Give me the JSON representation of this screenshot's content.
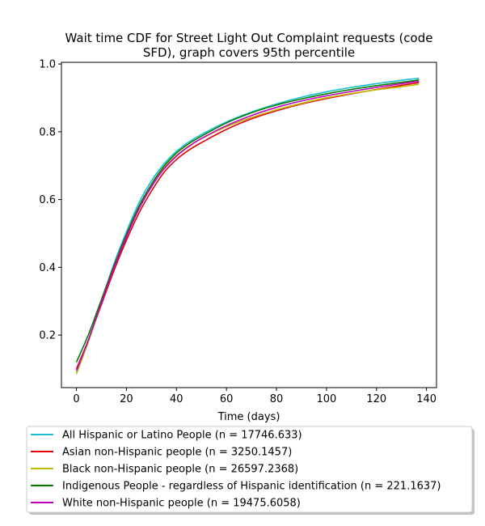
{
  "chart_data": {
    "type": "line",
    "title_lines": [
      "Wait time CDF for Street Light Out Complaint  requests (code",
      "SFD), graph covers 95th percentile"
    ],
    "xlabel": "Time (days)",
    "ylabel": "",
    "xlim": [
      -6,
      144
    ],
    "ylim": [
      0.045,
      1.005
    ],
    "x_ticks": [
      0,
      20,
      40,
      60,
      80,
      100,
      120,
      140
    ],
    "y_ticks": [
      0.2,
      0.4,
      0.6,
      0.8,
      1.0
    ],
    "x_tick_labels": [
      "0",
      "20",
      "40",
      "60",
      "80",
      "100",
      "120",
      "140"
    ],
    "y_tick_labels": [
      "0.2",
      "0.4",
      "0.6",
      "0.8",
      "1.0"
    ],
    "grid": false,
    "legend_position": "below plot",
    "x": [
      0,
      5,
      10,
      15,
      20,
      25,
      30,
      35,
      40,
      45,
      50,
      60,
      70,
      80,
      90,
      100,
      110,
      120,
      130,
      137
    ],
    "series": [
      {
        "name": "All Hispanic or Latino People (n = 17746.633)",
        "color": "#17becf",
        "values": [
          0.09,
          0.19,
          0.3,
          0.41,
          0.505,
          0.59,
          0.655,
          0.705,
          0.742,
          0.77,
          0.792,
          0.829,
          0.858,
          0.882,
          0.902,
          0.918,
          0.931,
          0.942,
          0.952,
          0.958
        ]
      },
      {
        "name": "Asian non-Hispanic people (n = 3250.1457)",
        "color": "#e8000b",
        "values": [
          0.1,
          0.19,
          0.29,
          0.39,
          0.48,
          0.56,
          0.625,
          0.68,
          0.718,
          0.746,
          0.768,
          0.807,
          0.838,
          0.862,
          0.882,
          0.898,
          0.912,
          0.925,
          0.937,
          0.945
        ]
      },
      {
        "name": "Black non-Hispanic people (n = 26597.2368)",
        "color": "#bcbd00",
        "values": [
          0.085,
          0.185,
          0.295,
          0.4,
          0.492,
          0.575,
          0.642,
          0.693,
          0.73,
          0.758,
          0.78,
          0.815,
          0.842,
          0.865,
          0.884,
          0.9,
          0.913,
          0.924,
          0.933,
          0.94
        ]
      },
      {
        "name": "Indigenous People - regardless of Hispanic identification (n = 221.1637)",
        "color": "#008000",
        "values": [
          0.12,
          0.205,
          0.305,
          0.405,
          0.497,
          0.58,
          0.645,
          0.698,
          0.737,
          0.765,
          0.787,
          0.826,
          0.856,
          0.879,
          0.897,
          0.912,
          0.925,
          0.936,
          0.946,
          0.953
        ]
      },
      {
        "name": "White non-Hispanic people (n = 19475.6058)",
        "color": "#c000c0",
        "values": [
          0.095,
          0.19,
          0.295,
          0.398,
          0.49,
          0.572,
          0.638,
          0.69,
          0.728,
          0.757,
          0.78,
          0.818,
          0.848,
          0.872,
          0.891,
          0.906,
          0.919,
          0.931,
          0.942,
          0.949
        ]
      }
    ]
  }
}
